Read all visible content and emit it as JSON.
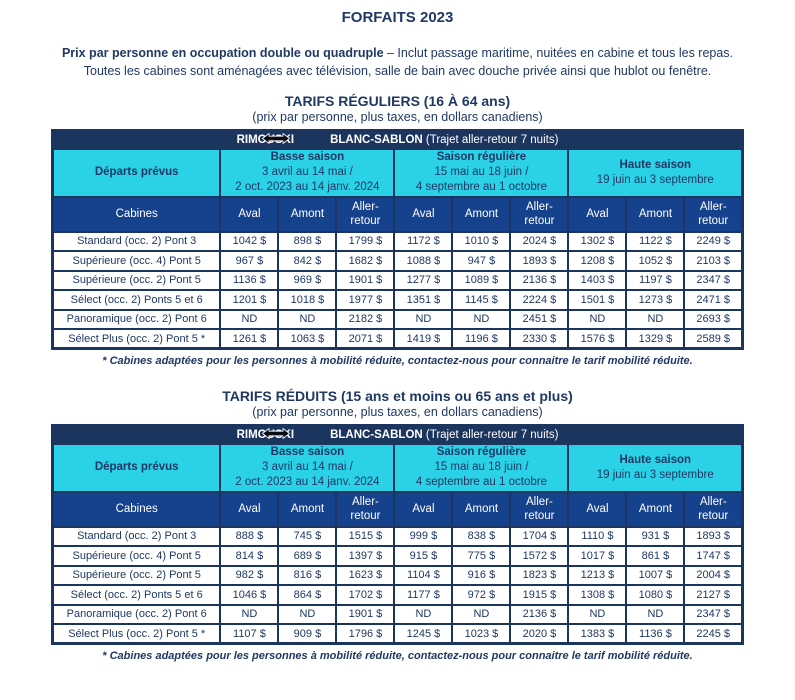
{
  "page": {
    "title": "FORFAITS 2023",
    "intro_bold": "Prix par personne en occupation double ou quadruple",
    "intro_rest": " – Inclut passage maritime, nuitées en cabine et tous les repas.",
    "intro_line2": "Toutes les cabines sont aménagées avec télévision, salle de bain avec douche privée ainsi que hublot ou fenêtre."
  },
  "colors": {
    "navy_bar": "#1c355f",
    "body_text": "#1f3864",
    "cyan_header": "#2bd1e6",
    "blue_subheader": "#16418c",
    "cell_background": "#ffffff"
  },
  "icons": {
    "route_arrow": "double-headed-arrow"
  },
  "sections": [
    {
      "heading": "TARIFS RÉGULIERS (16 À 64 ans)",
      "subheading": "(prix par personne, plus taxes, en dollars canadiens)",
      "route": {
        "from": "RIMOUSKI",
        "to": "BLANC-SABLON",
        "note": "(Trajet aller-retour 7 nuits)"
      },
      "departs_label": "Départs prévus",
      "cabins_label": "Cabines",
      "seasons": [
        {
          "name": "Basse saison",
          "dates": [
            "3 avril au 14 mai /",
            "2 oct. 2023 au 14 janv. 2024"
          ]
        },
        {
          "name": "Saison régulière",
          "dates": [
            "15 mai au 18 juin /",
            "4 septembre au 1 octobre"
          ]
        },
        {
          "name": "Haute saison",
          "dates": [
            "19 juin au 3 septembre"
          ]
        }
      ],
      "col_headers": [
        "Aval",
        "Amont",
        "Aller-retour"
      ],
      "rows": [
        {
          "cabin": "Standard (occ. 2) Pont 3",
          "values": [
            "1042 $",
            "898 $",
            "1799 $",
            "1172 $",
            "1010 $",
            "2024 $",
            "1302 $",
            "1122 $",
            "2249 $"
          ]
        },
        {
          "cabin": "Supérieure (occ. 4) Pont 5",
          "values": [
            "967 $",
            "842 $",
            "1682 $",
            "1088 $",
            "947 $",
            "1893 $",
            "1208 $",
            "1052 $",
            "2103 $"
          ]
        },
        {
          "cabin": "Supérieure (occ. 2) Pont 5",
          "values": [
            "1136 $",
            "969 $",
            "1901 $",
            "1277 $",
            "1089 $",
            "2136 $",
            "1403 $",
            "1197 $",
            "2347 $"
          ]
        },
        {
          "cabin": "Sélect (occ. 2) Ponts 5 et 6",
          "values": [
            "1201 $",
            "1018 $",
            "1977 $",
            "1351 $",
            "1145 $",
            "2224 $",
            "1501 $",
            "1273 $",
            "2471 $"
          ]
        },
        {
          "cabin": "Panoramique (occ. 2) Pont 6",
          "values": [
            "ND",
            "ND",
            "2182 $",
            "ND",
            "ND",
            "2451 $",
            "ND",
            "ND",
            "2693 $"
          ]
        },
        {
          "cabin": "Sélect Plus (occ. 2) Pont 5 *",
          "values": [
            "1261 $",
            "1063 $",
            "2071 $",
            "1419 $",
            "1196 $",
            "2330 $",
            "1576 $",
            "1329 $",
            "2589 $"
          ]
        }
      ],
      "footnote": "* Cabines adaptées pour les personnes à mobilité réduite, contactez-nous pour connaitre le tarif mobilité réduite."
    },
    {
      "heading": "TARIFS RÉDUITS (15 ans et moins ou 65 ans et plus)",
      "subheading": "(prix par personne, plus taxes, en dollars canadiens)",
      "route": {
        "from": "RIMOUSKI",
        "to": "BLANC-SABLON",
        "note": "(Trajet aller-retour 7 nuits)"
      },
      "departs_label": "Départs prévus",
      "cabins_label": "Cabines",
      "seasons": [
        {
          "name": "Basse saison",
          "dates": [
            "3 avril au 14 mai /",
            "2 oct. 2023 au 14 janv. 2024"
          ]
        },
        {
          "name": "Saison régulière",
          "dates": [
            "15 mai au 18 juin /",
            "4 septembre au 1 octobre"
          ]
        },
        {
          "name": "Haute saison",
          "dates": [
            "19 juin au 3 septembre"
          ]
        }
      ],
      "col_headers": [
        "Aval",
        "Amont",
        "Aller-retour"
      ],
      "rows": [
        {
          "cabin": "Standard (occ. 2) Pont 3",
          "values": [
            "888 $",
            "745 $",
            "1515 $",
            "999 $",
            "838 $",
            "1704 $",
            "1110 $",
            "931 $",
            "1893 $"
          ]
        },
        {
          "cabin": "Supérieure (occ. 4) Pont 5",
          "values": [
            "814 $",
            "689 $",
            "1397 $",
            "915 $",
            "775 $",
            "1572 $",
            "1017 $",
            "861 $",
            "1747 $"
          ]
        },
        {
          "cabin": "Supérieure (occ. 2) Pont 5",
          "values": [
            "982 $",
            "816 $",
            "1623 $",
            "1104 $",
            "916 $",
            "1823 $",
            "1213 $",
            "1007 $",
            "2004 $"
          ]
        },
        {
          "cabin": "Sélect (occ. 2) Ponts 5 et 6",
          "values": [
            "1046 $",
            "864 $",
            "1702 $",
            "1177 $",
            "972 $",
            "1915 $",
            "1308 $",
            "1080 $",
            "2127 $"
          ]
        },
        {
          "cabin": "Panoramique (occ. 2) Pont 6",
          "values": [
            "ND",
            "ND",
            "1901 $",
            "ND",
            "ND",
            "2136 $",
            "ND",
            "ND",
            "2347 $"
          ]
        },
        {
          "cabin": "Sélect Plus (occ. 2) Pont 5 *",
          "values": [
            "1107 $",
            "909 $",
            "1796 $",
            "1245 $",
            "1023 $",
            "2020 $",
            "1383 $",
            "1136 $",
            "2245 $"
          ]
        }
      ],
      "footnote": "* Cabines adaptées pour les personnes à mobilité réduite, contactez-nous pour connaitre le tarif mobilité réduite."
    }
  ]
}
